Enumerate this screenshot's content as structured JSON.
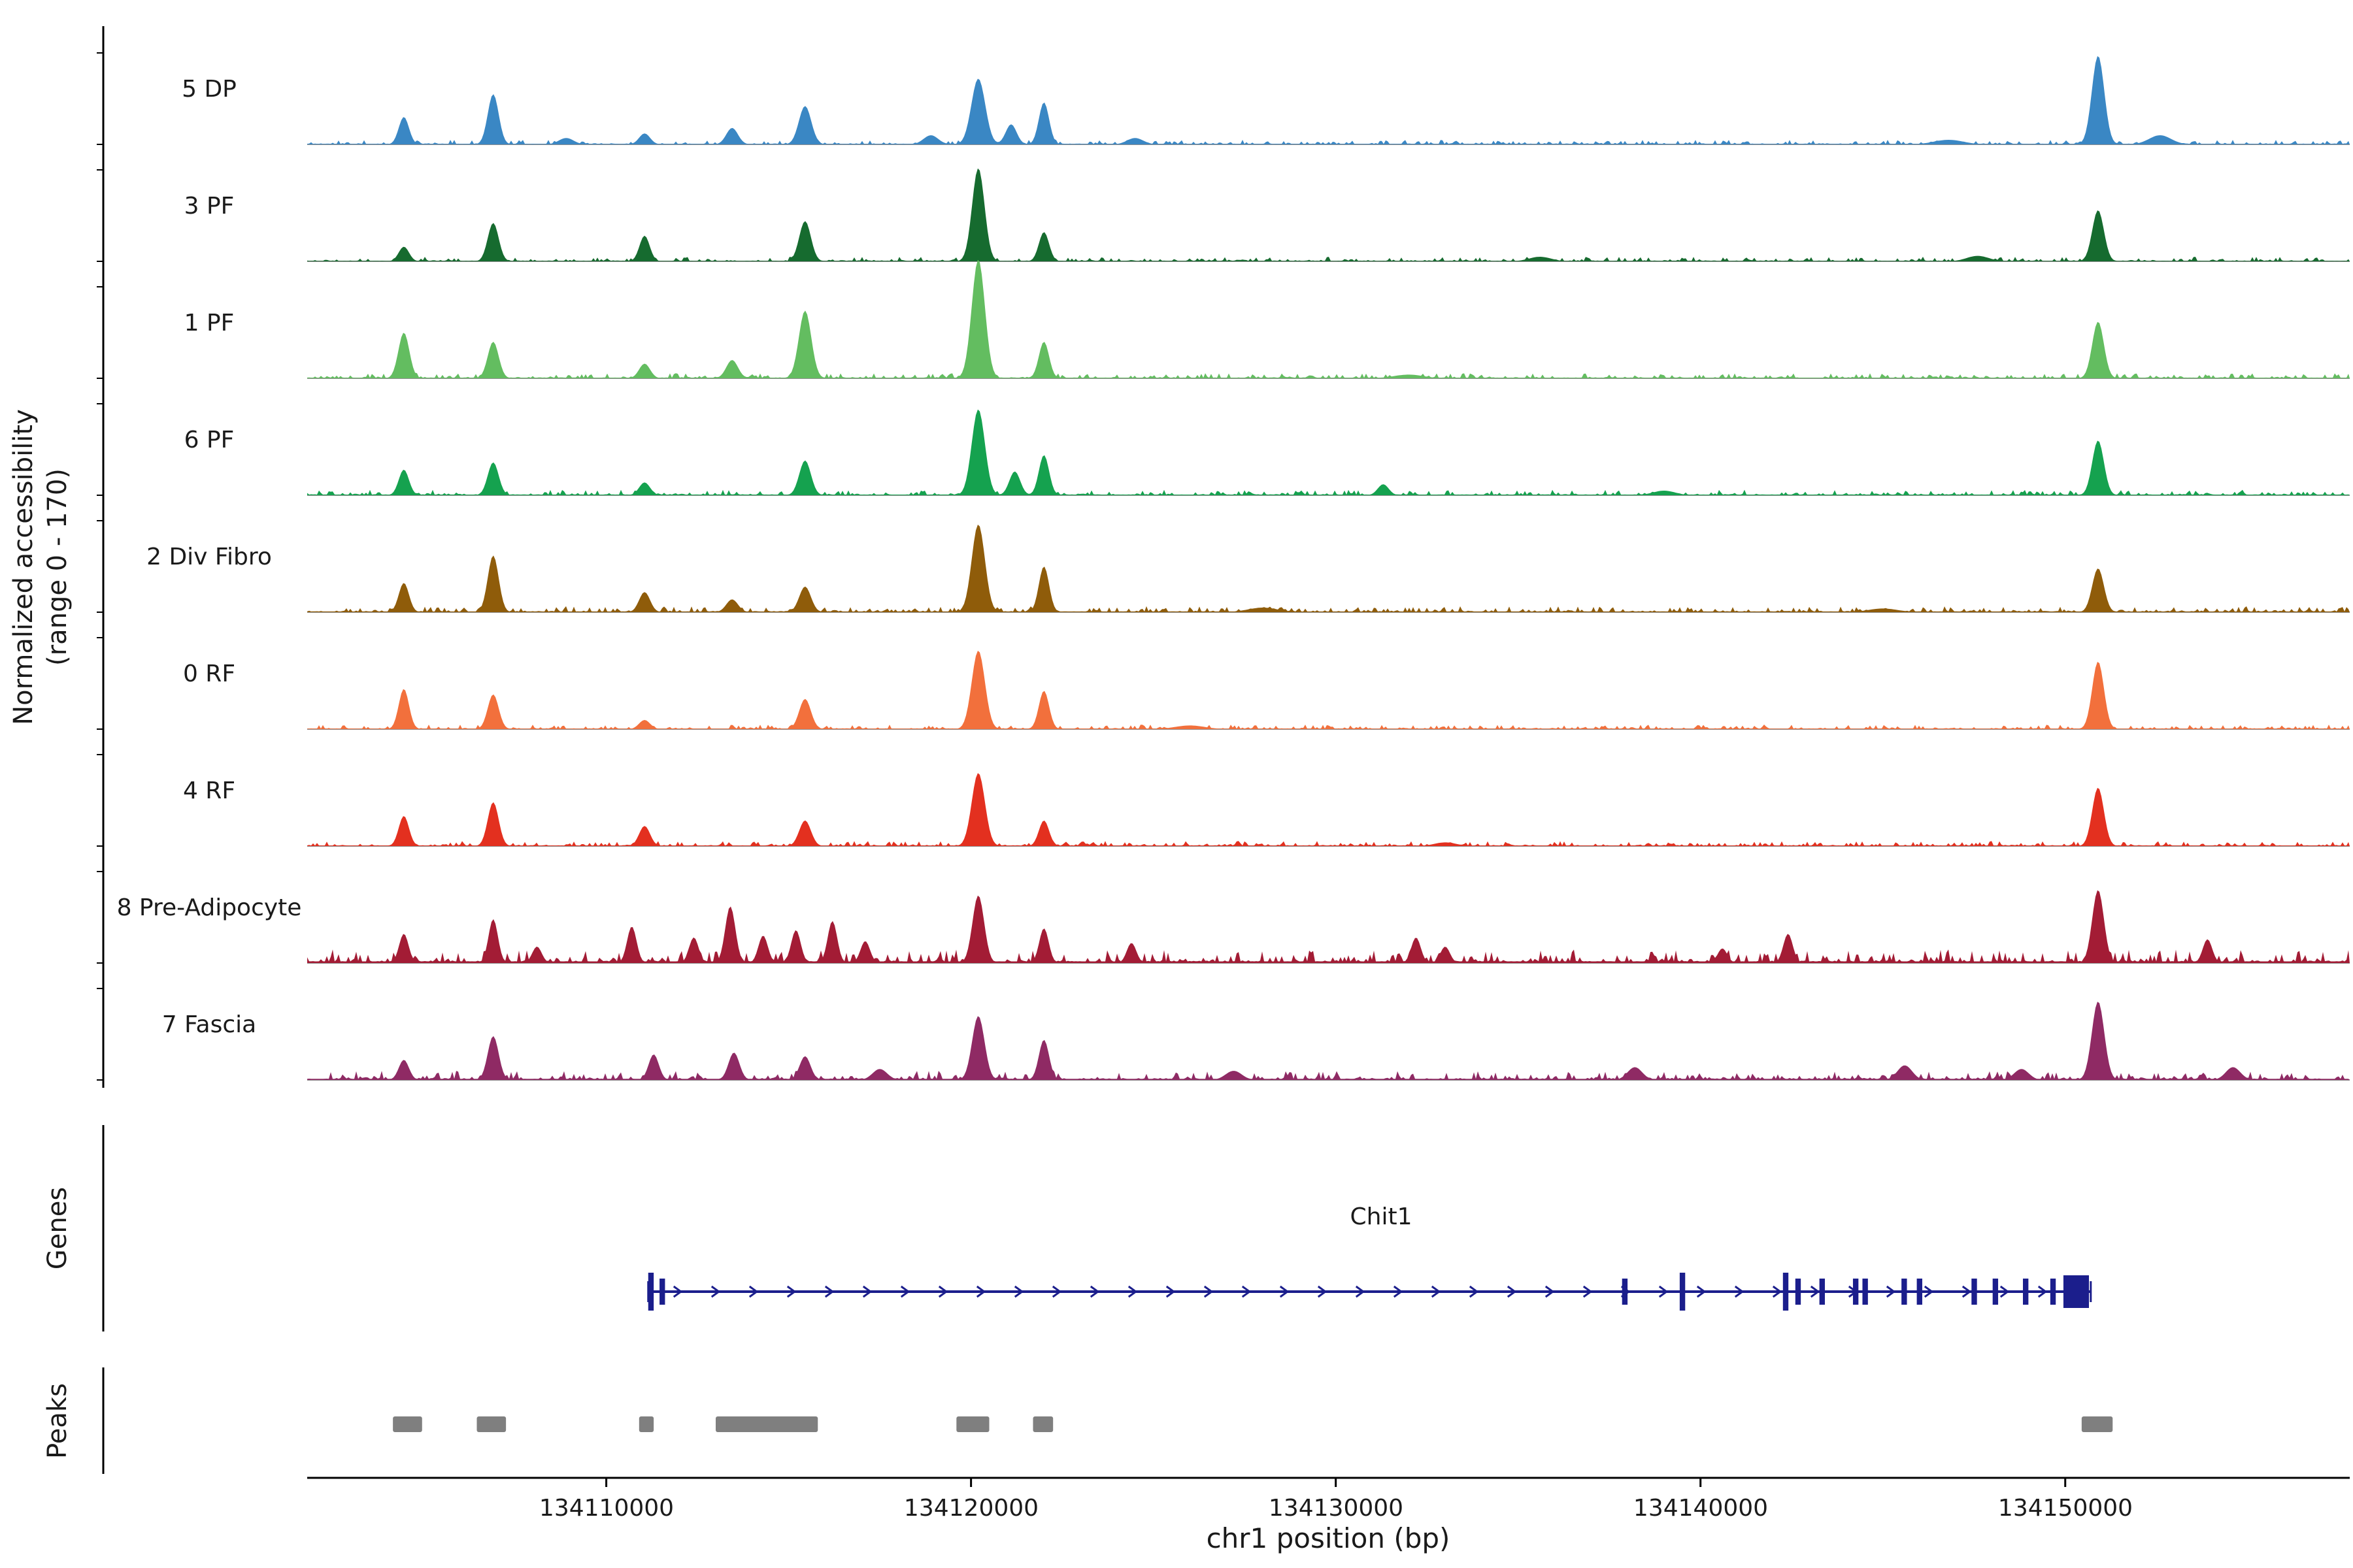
{
  "figure": {
    "y_axis_title_line1": "Normalized accessibility",
    "y_axis_title_line2": "(range 0 - 170)",
    "genes_section_label": "Genes",
    "peaks_section_label": "Peaks",
    "x_axis_title": "chr1 position (bp)"
  },
  "chart_data": {
    "type": "area",
    "title": "",
    "xlabel": "chr1 position (bp)",
    "ylabel": "Normalized accessibility (range 0 - 170)",
    "x_domain": [
      134101800,
      134157800
    ],
    "x_ticks": [
      134110000,
      134120000,
      134130000,
      134140000,
      134150000
    ],
    "grid": false,
    "legend": "none",
    "tracks": [
      {
        "name": "5 DP",
        "color": "#3a87c4",
        "seed": 11,
        "noise_amp": 0.05,
        "peaks": [
          [
            134104450,
            0.3,
            140
          ],
          [
            134106900,
            0.55,
            150
          ],
          [
            134108900,
            0.07,
            200
          ],
          [
            134111050,
            0.12,
            150
          ],
          [
            134113450,
            0.18,
            160
          ],
          [
            134115450,
            0.42,
            170
          ],
          [
            134118900,
            0.1,
            200
          ],
          [
            134120200,
            0.72,
            190
          ],
          [
            134121100,
            0.22,
            150
          ],
          [
            134122000,
            0.46,
            140
          ],
          [
            134124500,
            0.07,
            220
          ],
          [
            134146800,
            0.05,
            400
          ],
          [
            134150900,
            0.97,
            170
          ],
          [
            134152600,
            0.1,
            300
          ]
        ]
      },
      {
        "name": "3 PF",
        "color": "#166b2f",
        "seed": 22,
        "noise_amp": 0.05,
        "peaks": [
          [
            134104450,
            0.16,
            140
          ],
          [
            134106900,
            0.42,
            150
          ],
          [
            134111050,
            0.28,
            140
          ],
          [
            134115450,
            0.44,
            160
          ],
          [
            134120200,
            1.02,
            170
          ],
          [
            134122000,
            0.32,
            140
          ],
          [
            134135600,
            0.05,
            300
          ],
          [
            134147600,
            0.06,
            300
          ],
          [
            134150900,
            0.56,
            160
          ]
        ]
      },
      {
        "name": "1 PF",
        "color": "#63bd60",
        "seed": 33,
        "noise_amp": 0.055,
        "peaks": [
          [
            134104450,
            0.5,
            150
          ],
          [
            134106900,
            0.4,
            150
          ],
          [
            134111050,
            0.16,
            150
          ],
          [
            134113450,
            0.2,
            160
          ],
          [
            134115450,
            0.74,
            170
          ],
          [
            134120200,
            1.3,
            180
          ],
          [
            134122000,
            0.4,
            140
          ],
          [
            134132000,
            0.04,
            400
          ],
          [
            134150900,
            0.62,
            160
          ]
        ]
      },
      {
        "name": "6 PF",
        "color": "#15a24f",
        "seed": 44,
        "noise_amp": 0.06,
        "peaks": [
          [
            134104450,
            0.28,
            140
          ],
          [
            134106900,
            0.36,
            150
          ],
          [
            134111050,
            0.14,
            150
          ],
          [
            134115450,
            0.38,
            160
          ],
          [
            134120200,
            0.94,
            180
          ],
          [
            134121200,
            0.26,
            150
          ],
          [
            134122000,
            0.44,
            140
          ],
          [
            134131300,
            0.12,
            150
          ],
          [
            134139000,
            0.05,
            300
          ],
          [
            134150900,
            0.6,
            160
          ]
        ]
      },
      {
        "name": "2 Div Fibro",
        "color": "#8f5c0a",
        "seed": 55,
        "noise_amp": 0.065,
        "peaks": [
          [
            134104450,
            0.32,
            140
          ],
          [
            134106900,
            0.62,
            150
          ],
          [
            134111050,
            0.22,
            150
          ],
          [
            134113450,
            0.14,
            160
          ],
          [
            134115450,
            0.28,
            160
          ],
          [
            134120200,
            0.96,
            180
          ],
          [
            134122000,
            0.5,
            140
          ],
          [
            134128000,
            0.05,
            400
          ],
          [
            134145000,
            0.04,
            400
          ],
          [
            134150900,
            0.48,
            160
          ]
        ]
      },
      {
        "name": "0 RF",
        "color": "#f2703c",
        "seed": 66,
        "noise_amp": 0.05,
        "peaks": [
          [
            134104450,
            0.44,
            140
          ],
          [
            134106900,
            0.38,
            150
          ],
          [
            134111050,
            0.1,
            150
          ],
          [
            134115450,
            0.33,
            160
          ],
          [
            134120200,
            0.86,
            180
          ],
          [
            134122000,
            0.42,
            140
          ],
          [
            134126000,
            0.04,
            400
          ],
          [
            134150900,
            0.74,
            160
          ]
        ]
      },
      {
        "name": "4 RF",
        "color": "#e3301f",
        "seed": 77,
        "noise_amp": 0.055,
        "peaks": [
          [
            134104450,
            0.33,
            140
          ],
          [
            134106900,
            0.48,
            150
          ],
          [
            134111050,
            0.22,
            150
          ],
          [
            134115450,
            0.28,
            160
          ],
          [
            134120200,
            0.8,
            180
          ],
          [
            134122000,
            0.28,
            140
          ],
          [
            134133000,
            0.04,
            300
          ],
          [
            134150900,
            0.64,
            160
          ]
        ]
      },
      {
        "name": "8 Pre-Adipocyte",
        "color": "#a31c35",
        "seed": 88,
        "noise_amp": 0.15,
        "peaks": [
          [
            134104450,
            0.32,
            130
          ],
          [
            134106900,
            0.48,
            130
          ],
          [
            134108100,
            0.18,
            130
          ],
          [
            134110700,
            0.4,
            130
          ],
          [
            134112400,
            0.28,
            130
          ],
          [
            134113400,
            0.62,
            140
          ],
          [
            134114300,
            0.3,
            130
          ],
          [
            134115200,
            0.36,
            130
          ],
          [
            134116200,
            0.46,
            130
          ],
          [
            134117100,
            0.24,
            130
          ],
          [
            134120200,
            0.74,
            160
          ],
          [
            134122000,
            0.38,
            130
          ],
          [
            134124400,
            0.22,
            130
          ],
          [
            134132200,
            0.28,
            130
          ],
          [
            134133000,
            0.18,
            130
          ],
          [
            134140600,
            0.16,
            130
          ],
          [
            134142400,
            0.32,
            130
          ],
          [
            134150900,
            0.8,
            160
          ],
          [
            134153900,
            0.26,
            130
          ]
        ]
      },
      {
        "name": "7 Fascia",
        "color": "#8f2a64",
        "seed": 99,
        "noise_amp": 0.1,
        "peaks": [
          [
            134104450,
            0.22,
            140
          ],
          [
            134106900,
            0.48,
            150
          ],
          [
            134111300,
            0.28,
            140
          ],
          [
            134113500,
            0.3,
            150
          ],
          [
            134115450,
            0.26,
            150
          ],
          [
            134117500,
            0.12,
            200
          ],
          [
            134120200,
            0.7,
            170
          ],
          [
            134122000,
            0.44,
            140
          ],
          [
            134127200,
            0.1,
            220
          ],
          [
            134138200,
            0.14,
            200
          ],
          [
            134145600,
            0.16,
            200
          ],
          [
            134148800,
            0.12,
            200
          ],
          [
            134150900,
            0.86,
            170
          ],
          [
            134154600,
            0.14,
            200
          ]
        ]
      }
    ],
    "gene": {
      "name": "Chit1",
      "strand": "+",
      "color": "#1b1e8c",
      "start": 134111150,
      "end": 134150700,
      "exons": [
        [
          134111150,
          134111300,
          "tall"
        ],
        [
          134111460,
          134111610,
          "n"
        ],
        [
          134137850,
          134138000,
          "n"
        ],
        [
          134139430,
          134139580,
          "tall"
        ],
        [
          134142260,
          134142410,
          "tall"
        ],
        [
          134142600,
          134142750,
          "n"
        ],
        [
          134143260,
          134143410,
          "n"
        ],
        [
          134144180,
          134144330,
          "n"
        ],
        [
          134144440,
          134144590,
          "n"
        ],
        [
          134145510,
          134145660,
          "n"
        ],
        [
          134145930,
          134146080,
          "n"
        ],
        [
          134147430,
          134147580,
          "n"
        ],
        [
          134148010,
          134148160,
          "n"
        ],
        [
          134148840,
          134148990,
          "n"
        ],
        [
          134149590,
          134149740,
          "n"
        ],
        [
          134149950,
          134150650,
          "thick"
        ]
      ]
    },
    "peak_boxes": {
      "color": "#7f7f7f",
      "boxes": [
        [
          134104150,
          134104950
        ],
        [
          134106450,
          134107250
        ],
        [
          134110900,
          134111300
        ],
        [
          134113000,
          134115800
        ],
        [
          134119600,
          134120500
        ],
        [
          134121700,
          134122250
        ],
        [
          134150450,
          134151300
        ]
      ]
    }
  }
}
